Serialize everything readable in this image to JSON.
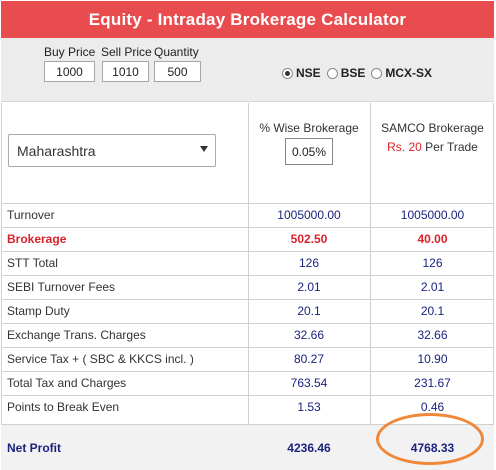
{
  "title": "Equity - Intraday Brokerage Calculator",
  "inputs": {
    "buy_price_label": "Buy Price",
    "buy_price": "1000",
    "sell_price_label": "Sell Price",
    "sell_price": "1010",
    "quantity_label": "Quantity",
    "quantity": "500"
  },
  "exchange": {
    "options": [
      "NSE",
      "BSE",
      "MCX-SX"
    ],
    "selected": "NSE"
  },
  "state_select": {
    "value": "Maharashtra"
  },
  "columns": {
    "pct_header": "% Wise Brokerage",
    "pct_value": "0.05%",
    "samco_header": "SAMCO Brokerage",
    "samco_rs": "Rs. 20",
    "samco_per_trade": "Per Trade"
  },
  "rows": [
    {
      "label": "Turnover",
      "pct": "1005000.00",
      "samco": "1005000.00"
    },
    {
      "label": "Brokerage",
      "pct": "502.50",
      "samco": "40.00"
    },
    {
      "label": "STT Total",
      "pct": "126",
      "samco": "126"
    },
    {
      "label": "SEBI Turnover Fees",
      "pct": "2.01",
      "samco": "2.01"
    },
    {
      "label": "Stamp Duty",
      "pct": "20.1",
      "samco": "20.1"
    },
    {
      "label": "Exchange Trans. Charges",
      "pct": "32.66",
      "samco": "32.66"
    },
    {
      "label": "Service Tax + ( SBC & KKCS incl. )",
      "pct": "80.27",
      "samco": "10.90"
    },
    {
      "label": "Total Tax and Charges",
      "pct": "763.54",
      "samco": "231.67"
    },
    {
      "label": "Points to Break Even",
      "pct": "1.53",
      "samco": "0.46"
    }
  ],
  "net_profit": {
    "label": "Net Profit",
    "pct": "4236.46",
    "samco": "4768.33"
  },
  "colors": {
    "header_bg": "#e84c4f",
    "highlight": "#d9232d",
    "value_text": "#1a237e",
    "annotation_ring": "#f0883a"
  }
}
